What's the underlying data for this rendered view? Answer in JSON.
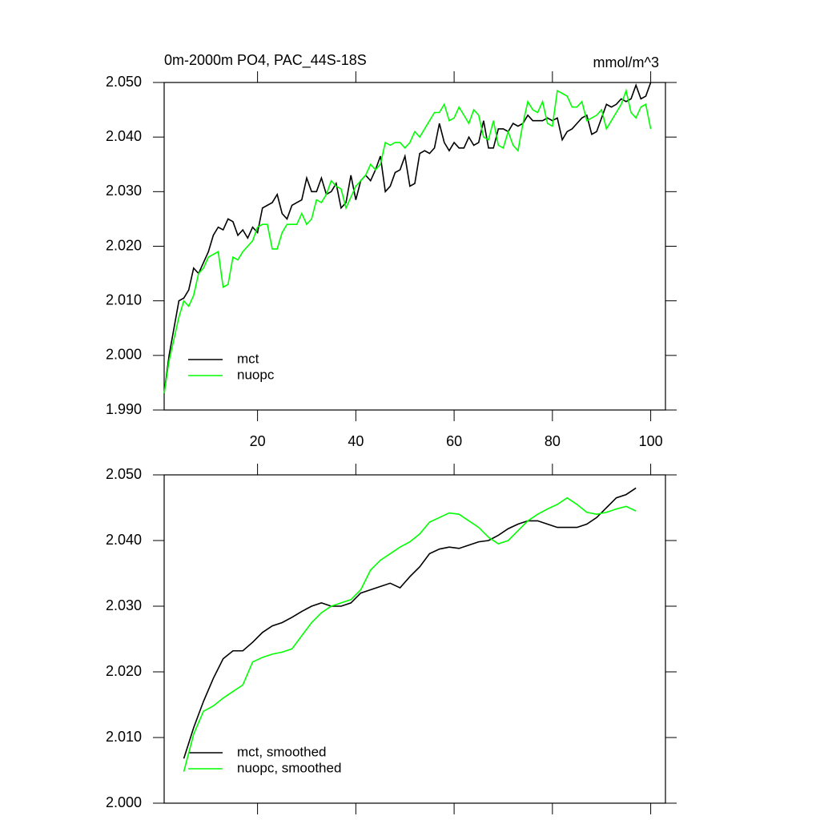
{
  "chart_data": [
    {
      "type": "line",
      "title": "0m-2000m PO4, PAC_44S-18S",
      "units": "mmol/m^3",
      "x": [
        1,
        2,
        3,
        4,
        5,
        6,
        7,
        8,
        9,
        10,
        11,
        12,
        13,
        14,
        15,
        16,
        17,
        18,
        19,
        20,
        21,
        22,
        23,
        24,
        25,
        26,
        27,
        28,
        29,
        30,
        31,
        32,
        33,
        34,
        35,
        36,
        37,
        38,
        39,
        40,
        41,
        42,
        43,
        44,
        45,
        46,
        47,
        48,
        49,
        50,
        51,
        52,
        53,
        54,
        55,
        56,
        57,
        58,
        59,
        60,
        61,
        62,
        63,
        64,
        65,
        66,
        67,
        68,
        69,
        70,
        71,
        72,
        73,
        74,
        75,
        76,
        77,
        78,
        79,
        80,
        81,
        82,
        83,
        84,
        85,
        86,
        87,
        88,
        89,
        90,
        91,
        92,
        93,
        94,
        95,
        96,
        97,
        98,
        99,
        100
      ],
      "series": [
        {
          "name": "mct",
          "color": "#000000",
          "values": [
            1.993,
            2.0,
            2.005,
            2.01,
            2.0105,
            2.012,
            2.016,
            2.015,
            2.017,
            2.019,
            2.022,
            2.0235,
            2.023,
            2.025,
            2.0245,
            2.022,
            2.023,
            2.0215,
            2.0235,
            2.0225,
            2.027,
            2.0275,
            2.028,
            2.0295,
            2.026,
            2.025,
            2.0275,
            2.028,
            2.0285,
            2.0325,
            2.03,
            2.03,
            2.0325,
            2.0295,
            2.03,
            2.0315,
            2.027,
            2.028,
            2.033,
            2.0285,
            2.032,
            2.033,
            2.032,
            2.034,
            2.0365,
            2.03,
            2.031,
            2.0335,
            2.034,
            2.0365,
            2.031,
            2.0315,
            2.037,
            2.0375,
            2.037,
            2.038,
            2.0425,
            2.039,
            2.0375,
            2.039,
            2.038,
            2.038,
            2.04,
            2.0385,
            2.039,
            2.043,
            2.038,
            2.038,
            2.0415,
            2.0415,
            2.041,
            2.0425,
            2.042,
            2.0425,
            2.044,
            2.043,
            2.043,
            2.043,
            2.0435,
            2.043,
            2.0435,
            2.0395,
            2.041,
            2.0415,
            2.0425,
            2.0435,
            2.044,
            2.0405,
            2.041,
            2.0435,
            2.046,
            2.0455,
            2.046,
            2.047,
            2.0465,
            2.047,
            2.0495,
            2.047,
            2.0475,
            2.05
          ]
        },
        {
          "name": "nuopc",
          "color": "#00ff00",
          "values": [
            1.993,
            1.999,
            2.003,
            2.007,
            2.01,
            2.009,
            2.011,
            2.015,
            2.016,
            2.018,
            2.0185,
            2.019,
            2.0125,
            2.013,
            2.018,
            2.0175,
            2.019,
            2.02,
            2.021,
            2.0235,
            2.024,
            2.024,
            2.0195,
            2.0195,
            2.0225,
            2.024,
            2.024,
            2.024,
            2.026,
            2.024,
            2.025,
            2.0285,
            2.028,
            2.0295,
            2.032,
            2.031,
            2.0305,
            2.027,
            2.029,
            2.031,
            2.032,
            2.033,
            2.035,
            2.034,
            2.035,
            2.039,
            2.0385,
            2.039,
            2.039,
            2.038,
            2.039,
            2.041,
            2.04,
            2.0415,
            2.043,
            2.0445,
            2.0445,
            2.046,
            2.043,
            2.0435,
            2.0455,
            2.044,
            2.0425,
            2.045,
            2.044,
            2.04,
            2.0395,
            2.043,
            2.0385,
            2.038,
            2.041,
            2.0385,
            2.0375,
            2.0425,
            2.0465,
            2.045,
            2.0445,
            2.0465,
            2.0425,
            2.042,
            2.0485,
            2.048,
            2.0475,
            2.0455,
            2.0455,
            2.0465,
            2.043,
            2.0435,
            2.044,
            2.045,
            2.0415,
            2.043,
            2.0445,
            2.046,
            2.0485,
            2.0445,
            2.0435,
            2.0455,
            2.046,
            2.0415
          ]
        }
      ],
      "xlim": [
        1,
        103
      ],
      "ylim": [
        1.99,
        2.05
      ],
      "xticks": [
        20,
        40,
        60,
        80,
        100
      ],
      "yticks": [
        {
          "value": 1.99,
          "label": "1.990"
        },
        {
          "value": 2.0,
          "label": "2.000"
        },
        {
          "value": 2.01,
          "label": "2.010"
        },
        {
          "value": 2.02,
          "label": "2.020"
        },
        {
          "value": 2.03,
          "label": "2.030"
        },
        {
          "value": 2.04,
          "label": "2.040"
        },
        {
          "value": 2.05,
          "label": "2.050"
        }
      ],
      "show_xtick_labels": true,
      "legend": "lower left"
    },
    {
      "type": "line",
      "x": [
        5,
        7,
        9,
        11,
        13,
        15,
        17,
        19,
        21,
        23,
        25,
        27,
        29,
        31,
        33,
        35,
        37,
        39,
        41,
        43,
        45,
        47,
        49,
        51,
        53,
        55,
        57,
        59,
        61,
        63,
        65,
        67,
        69,
        71,
        73,
        75,
        77,
        79,
        81,
        83,
        85,
        87,
        89,
        91,
        93,
        95,
        97
      ],
      "series": [
        {
          "name": "mct, smoothed",
          "color": "#000000",
          "values": [
            2.0068,
            2.0115,
            2.0155,
            2.019,
            2.022,
            2.0232,
            2.0232,
            2.0245,
            2.026,
            2.027,
            2.0275,
            2.0283,
            2.0292,
            2.03,
            2.0305,
            2.03,
            2.03,
            2.0305,
            2.032,
            2.0325,
            2.033,
            2.0335,
            2.0328,
            2.0345,
            2.036,
            2.038,
            2.0387,
            2.039,
            2.0388,
            2.0393,
            2.0398,
            2.04,
            2.0408,
            2.0418,
            2.0425,
            2.043,
            2.043,
            2.0425,
            2.042,
            2.042,
            2.042,
            2.0425,
            2.0435,
            2.045,
            2.0465,
            2.047,
            2.048
          ]
        },
        {
          "name": "nuopc, smoothed",
          "color": "#00ff00",
          "values": [
            2.0048,
            2.0105,
            2.014,
            2.0148,
            2.016,
            2.017,
            2.018,
            2.0215,
            2.0222,
            2.0227,
            2.023,
            2.0235,
            2.0255,
            2.0275,
            2.029,
            2.03,
            2.0305,
            2.031,
            2.0325,
            2.0355,
            2.037,
            2.038,
            2.039,
            2.0398,
            2.041,
            2.0428,
            2.0435,
            2.0442,
            2.044,
            2.043,
            2.042,
            2.0405,
            2.0395,
            2.04,
            2.0415,
            2.043,
            2.044,
            2.0448,
            2.0455,
            2.0465,
            2.0455,
            2.0443,
            2.044,
            2.0443,
            2.0448,
            2.0452,
            2.0445
          ]
        }
      ],
      "xlim": [
        1,
        103
      ],
      "ylim": [
        2.0,
        2.05
      ],
      "xticks": [
        20,
        40,
        60,
        80,
        100
      ],
      "yticks": [
        {
          "value": 2.0,
          "label": "2.000"
        },
        {
          "value": 2.01,
          "label": "2.010"
        },
        {
          "value": 2.02,
          "label": "2.020"
        },
        {
          "value": 2.03,
          "label": "2.030"
        },
        {
          "value": 2.04,
          "label": "2.040"
        },
        {
          "value": 2.05,
          "label": "2.050"
        }
      ],
      "show_xtick_labels": false,
      "legend": "lower left"
    }
  ]
}
